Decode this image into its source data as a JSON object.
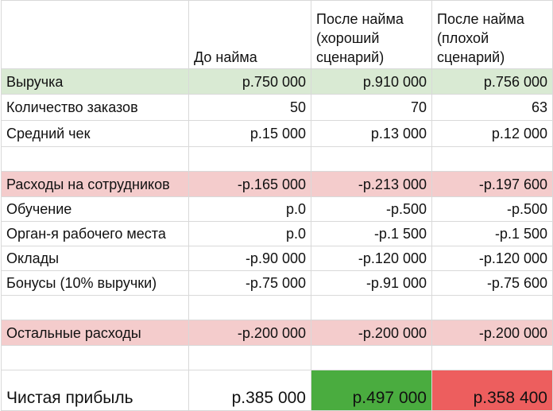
{
  "columns": {
    "before": "До найма",
    "good": "После найма (хороший сценарий)",
    "bad": "После найма (плохой сценарий)"
  },
  "rows": [
    {
      "label": "Выручка",
      "before": "р.750 000",
      "good": "р.910 000",
      "bad": "р.756 000"
    },
    {
      "label": "Количество заказов",
      "before": "50",
      "good": "70",
      "bad": "63"
    },
    {
      "label": "Средний чек",
      "before": "р.15 000",
      "good": "р.13 000",
      "bad": "р.12 000"
    },
    {
      "label": "Расходы на сотрудников",
      "before": "-р.165 000",
      "good": "-р.213 000",
      "bad": "-р.197 600"
    },
    {
      "label": "Обучение",
      "before": "р.0",
      "good": "-р.500",
      "bad": "-р.500"
    },
    {
      "label": "Орган-я рабочего места",
      "before": "р.0",
      "good": "-р.1 500",
      "bad": "-р.1 500"
    },
    {
      "label": "Оклады",
      "before": "-р.90 000",
      "good": "-р.120 000",
      "bad": "-р.120 000"
    },
    {
      "label": "Бонусы (10% выручки)",
      "before": "-р.75 000",
      "good": "-р.91 000",
      "bad": "-р.75 600"
    },
    {
      "label": "Остальные расходы",
      "before": "-р.200 000",
      "good": "-р.200 000",
      "bad": "-р.200 000"
    },
    {
      "label": "Чистая прибыль",
      "before": "р.385 000",
      "good": "р.497 000",
      "bad": "р.358 400"
    }
  ],
  "colors": {
    "revenue_row": "#d9ead3",
    "expense_row": "#f4cccc",
    "profit_good": "#4aac3f",
    "profit_bad": "#ed5e5e",
    "grid": "#d9d9d9"
  }
}
